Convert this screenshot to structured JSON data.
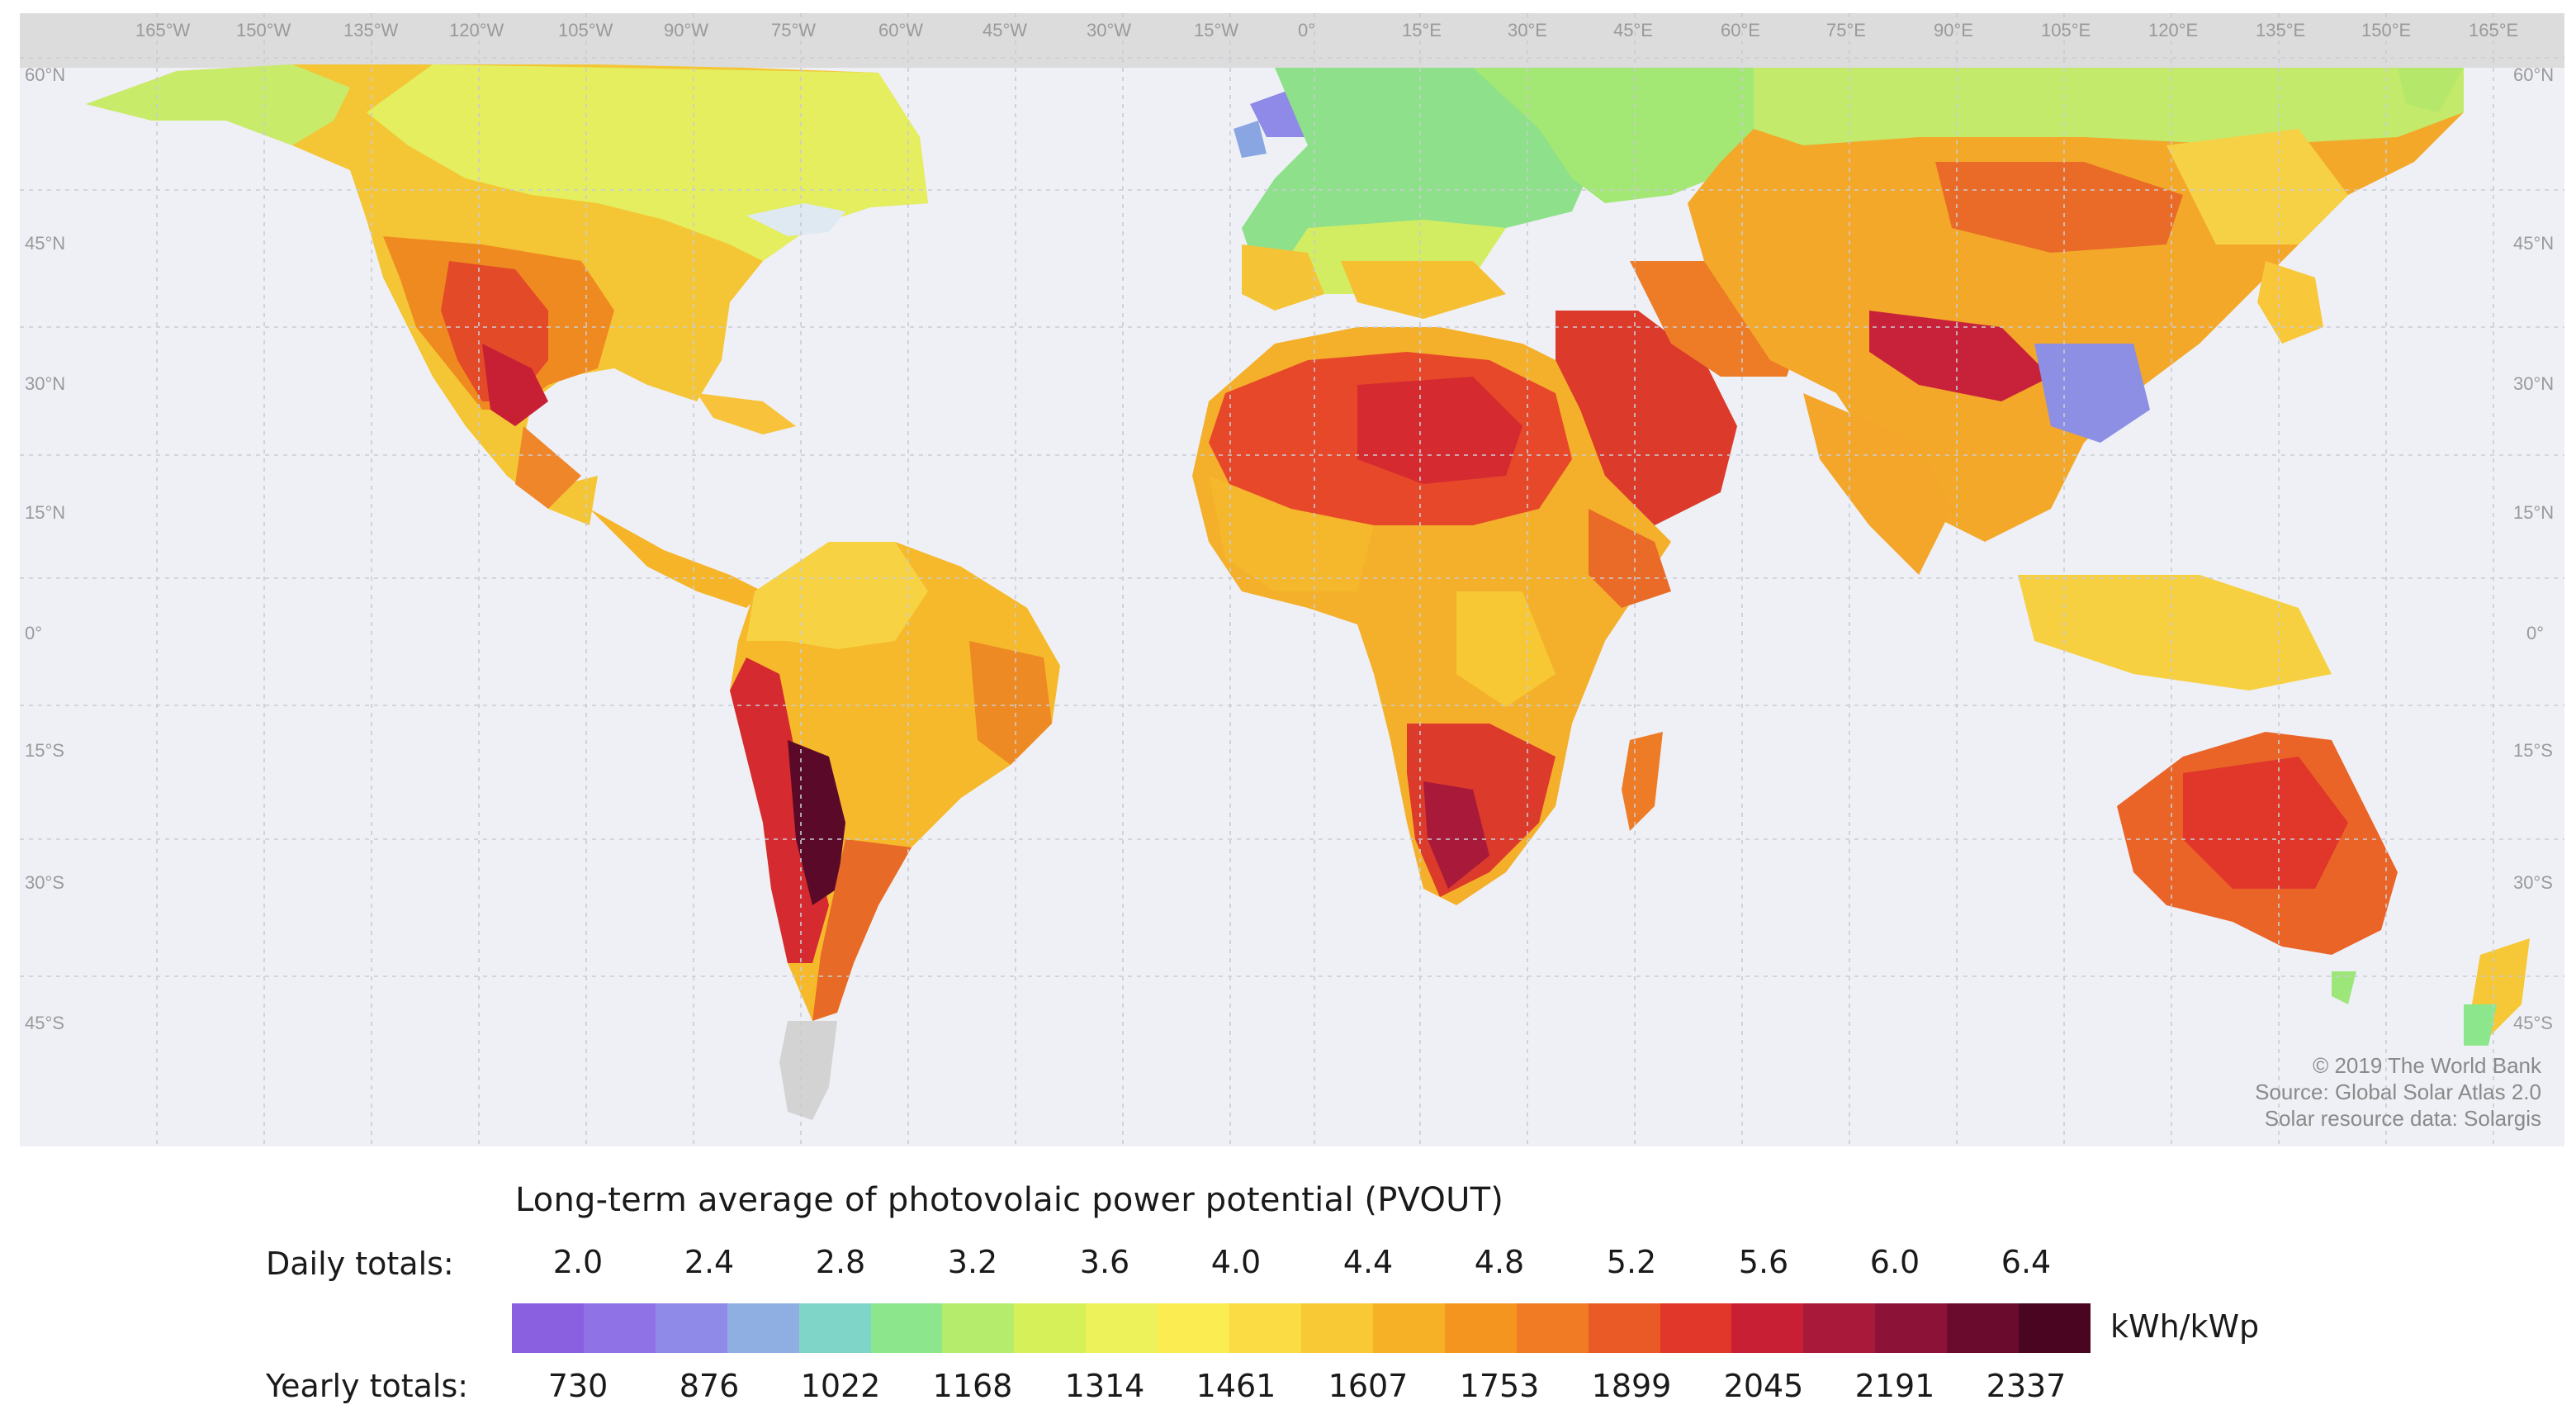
{
  "map": {
    "longitude_labels": [
      "165°W",
      "150°W",
      "135°W",
      "120°W",
      "105°W",
      "90°W",
      "75°W",
      "60°W",
      "45°W",
      "30°W",
      "15°W",
      "0°",
      "15°E",
      "30°E",
      "45°E",
      "60°E",
      "75°E",
      "90°E",
      "105°E",
      "120°E",
      "135°E",
      "150°E",
      "165°E"
    ],
    "latitude_labels": [
      "60°N",
      "45°N",
      "30°N",
      "15°N",
      "0°",
      "15°S",
      "30°S",
      "45°S"
    ],
    "credits": [
      "© 2019 The World Bank",
      "Source: Global Solar Atlas 2.0",
      "Solar resource data: Solargis"
    ],
    "colors": {
      "ocean": "#eef0f6",
      "nodata_land": "#d9d9d9",
      "grid": "#c9ccd3"
    }
  },
  "legend": {
    "title": "Long-term average of photovolaic power potential (PVOUT)",
    "daily_label": "Daily totals:",
    "yearly_label": "Yearly totals:",
    "unit": "kWh/kWp",
    "daily_values": [
      "2.0",
      "2.4",
      "2.8",
      "3.2",
      "3.6",
      "4.0",
      "4.4",
      "4.8",
      "5.2",
      "5.6",
      "6.0",
      "6.4"
    ],
    "yearly_values": [
      "730",
      "876",
      "1022",
      "1168",
      "1314",
      "1461",
      "1607",
      "1753",
      "1899",
      "2045",
      "2191",
      "2337"
    ],
    "colors": [
      "#8a5fe0",
      "#8f72e6",
      "#8f8ae8",
      "#8faee2",
      "#7fd6c8",
      "#8be68c",
      "#b6ec6c",
      "#d6f05a",
      "#eef25a",
      "#fbec52",
      "#fbdc44",
      "#f8c835",
      "#f6b126",
      "#f4951f",
      "#f07b24",
      "#ea5a27",
      "#e0372a",
      "#c81f35",
      "#a8193a",
      "#8c1238",
      "#6a0a2c",
      "#4a0620"
    ]
  }
}
